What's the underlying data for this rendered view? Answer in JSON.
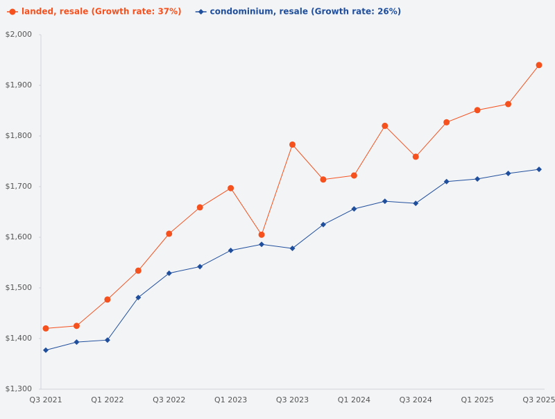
{
  "chart_data": {
    "type": "line",
    "categories": [
      "Q3 2021",
      null,
      "Q1 2022",
      null,
      "Q3 2022",
      null,
      "Q1 2023",
      null,
      "Q3 2023",
      null,
      "Q1 2024",
      null,
      "Q3 2024",
      null,
      "Q1 2025",
      null,
      "Q3 2025"
    ],
    "series": [
      {
        "name": "landed, resale (Growth rate: 37%)",
        "color": "#f4511e",
        "marker": "circle",
        "values": [
          1420,
          1425,
          1477,
          1534,
          1607,
          1659,
          1697,
          1605,
          1783,
          1714,
          1722,
          1820,
          1759,
          1827,
          1851,
          1863,
          1940
        ]
      },
      {
        "name": "condominium, resale (Growth rate: 26%)",
        "color": "#1f4e9c",
        "marker": "diamond",
        "values": [
          1377,
          1393,
          1397,
          1481,
          1529,
          1542,
          1574,
          1586,
          1578,
          1625,
          1656,
          1671,
          1667,
          1710,
          1715,
          1726,
          1734
        ]
      }
    ],
    "ylim": [
      1300,
      2000
    ],
    "yticks": [
      {
        "value": 1300,
        "label": "$1,300"
      },
      {
        "value": 1400,
        "label": "$1,400"
      },
      {
        "value": 1500,
        "label": "$1,500"
      },
      {
        "value": 1600,
        "label": "$1,600"
      },
      {
        "value": 1700,
        "label": "$1,700"
      },
      {
        "value": 1800,
        "label": "$1,800"
      },
      {
        "value": 1900,
        "label": "$1,900"
      },
      {
        "value": 2000,
        "label": "$2,000"
      }
    ],
    "legend": "top-left"
  }
}
